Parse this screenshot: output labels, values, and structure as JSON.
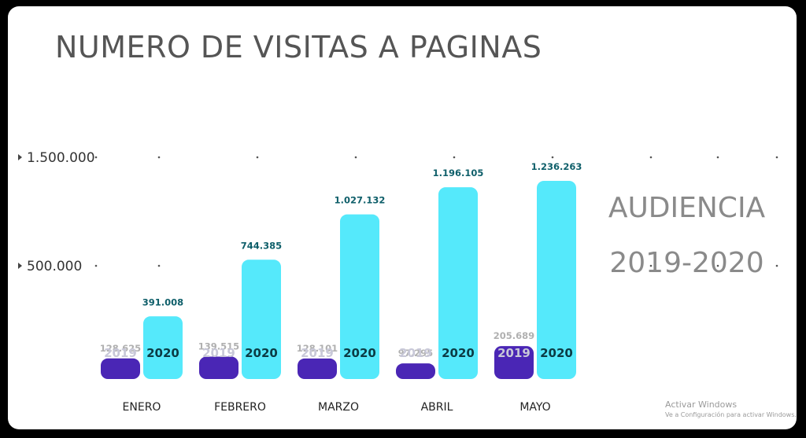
{
  "title": "NUMERO DE VISITAS A PAGINAS",
  "side_title": {
    "line1": "AUDIENCIA",
    "line2": "2019-2020"
  },
  "watermark": {
    "line1": "Activar Windows",
    "line2": "Ve a Configuración para activar Windows."
  },
  "colors": {
    "series_2019": "#4a26b5",
    "series_2020": "#55e9fb",
    "label_2019": "#b0b0b0",
    "label_2020": "#0f5f6a",
    "year_2019_text": "#c8c8d8",
    "year_2020_text": "#0b3b44"
  },
  "chart_data": {
    "type": "bar",
    "title": "NUMERO DE VISITAS A PAGINAS",
    "categories": [
      "ENERO",
      "FEBRERO",
      "MARZO",
      "ABRIL",
      "MAYO"
    ],
    "series": [
      {
        "name": "2019",
        "values": [
          128625,
          139515,
          128101,
          97295,
          205689
        ],
        "labels": [
          "128.625",
          "139.515",
          "128.101",
          "97.295",
          "205.689"
        ]
      },
      {
        "name": "2020",
        "values": [
          391008,
          744385,
          1027132,
          1196105,
          1236263
        ],
        "labels": [
          "391.008",
          "744.385",
          "1.027.132",
          "1.196.105",
          "1.236.263"
        ]
      }
    ],
    "y_ticks": [
      500000,
      1500000
    ],
    "y_tick_labels": [
      "500.000",
      "1.500.000"
    ],
    "ylim": [
      0,
      1500000
    ],
    "grid": "dotted",
    "legend": "none"
  }
}
